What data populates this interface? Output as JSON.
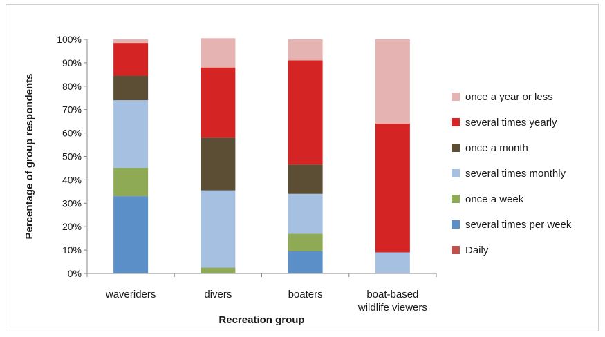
{
  "chart_data": {
    "type": "bar",
    "stacked": true,
    "xlabel": "Recreation group",
    "ylabel": "Percentage of group respondents",
    "ylim": [
      0,
      100
    ],
    "y_ticks": [
      "0%",
      "10%",
      "20%",
      "30%",
      "40%",
      "50%",
      "60%",
      "70%",
      "80%",
      "90%",
      "100%"
    ],
    "categories": [
      "waveriders",
      "divers",
      "boaters",
      "boat-based wildlife viewers"
    ],
    "category_lines": [
      [
        "waveriders"
      ],
      [
        "divers"
      ],
      [
        "boaters"
      ],
      [
        "boat-based",
        "wildlife viewers"
      ]
    ],
    "grid": false,
    "legend_position": "right",
    "series": [
      {
        "name": "Daily",
        "color": "#c0504d",
        "values": [
          0,
          0,
          0,
          0
        ]
      },
      {
        "name": "several times per week",
        "color": "#5b8fc7",
        "values": [
          33,
          0,
          9.5,
          0
        ]
      },
      {
        "name": "once a week",
        "color": "#8faa55",
        "values": [
          12,
          2.5,
          7.5,
          0
        ]
      },
      {
        "name": "several times monthly",
        "color": "#a6c0e2",
        "values": [
          29,
          33,
          17,
          9
        ]
      },
      {
        "name": "once a month",
        "color": "#5b4e35",
        "values": [
          10.5,
          22.5,
          12.5,
          0
        ]
      },
      {
        "name": "several times yearly",
        "color": "#d42424",
        "values": [
          14,
          30,
          44.5,
          55
        ]
      },
      {
        "name": "once a year or less",
        "color": "#e6b3b3",
        "values": [
          1.5,
          12.5,
          9,
          36
        ]
      }
    ]
  }
}
